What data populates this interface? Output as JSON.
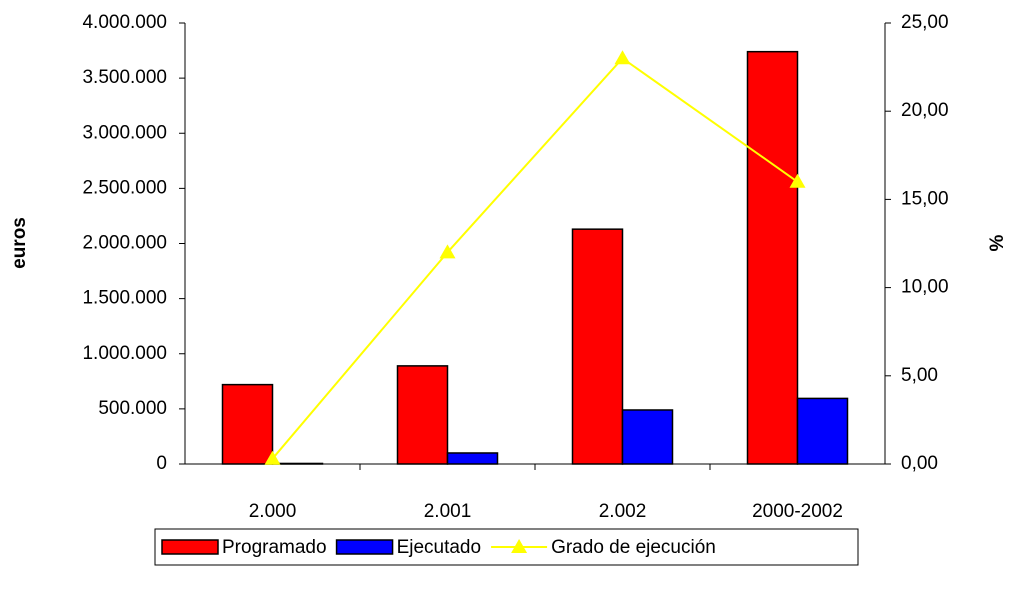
{
  "chart_data": {
    "type": "bar_line",
    "y_label": "euros",
    "y2_label": "%",
    "categories": [
      "2.000",
      "2.001",
      "2.002",
      "2000-2002"
    ],
    "series": [
      {
        "name": "Programado",
        "color": "#ff0000",
        "type": "bar",
        "values": [
          720000,
          890000,
          2130000,
          3740000
        ]
      },
      {
        "name": "Ejecutado",
        "color": "#0000ff",
        "type": "bar",
        "values": [
          5000,
          100000,
          490000,
          595000
        ]
      },
      {
        "name": "Grado de ejecución",
        "color": "#ffff00",
        "type": "line",
        "axis": "y2",
        "values": [
          0.3,
          12,
          23,
          16
        ]
      }
    ],
    "ylim": [
      0,
      4000000
    ],
    "yticks": [
      {
        "value": 0,
        "label": "0"
      },
      {
        "value": 500000,
        "label": "500.000"
      },
      {
        "value": 1000000,
        "label": "1.000.000"
      },
      {
        "value": 1500000,
        "label": "1.500.000"
      },
      {
        "value": 2000000,
        "label": "2.000.000"
      },
      {
        "value": 2500000,
        "label": "2.500.000"
      },
      {
        "value": 3000000,
        "label": "3.000.000"
      },
      {
        "value": 3500000,
        "label": "3.500.000"
      },
      {
        "value": 4000000,
        "label": "4.000.000"
      }
    ],
    "y2lim": [
      0,
      25
    ],
    "y2ticks": [
      {
        "value": 0,
        "label": "0,00"
      },
      {
        "value": 5,
        "label": "5,00"
      },
      {
        "value": 10,
        "label": "10,00"
      },
      {
        "value": 15,
        "label": "15,00"
      },
      {
        "value": 20,
        "label": "20,00"
      },
      {
        "value": 25,
        "label": "25,00"
      }
    ],
    "legend": "bottom"
  }
}
